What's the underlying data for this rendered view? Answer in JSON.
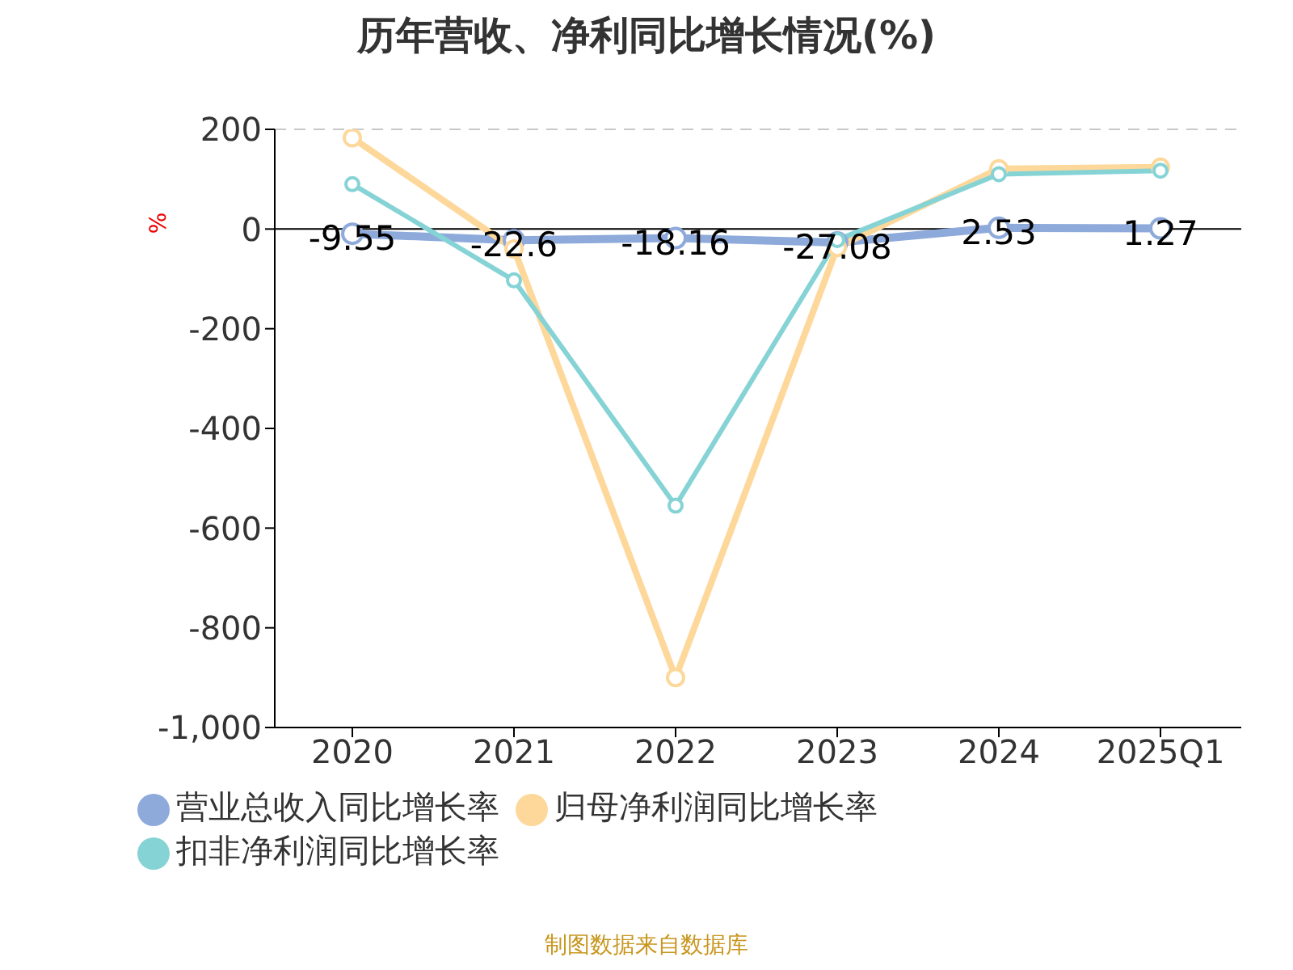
{
  "chart_data": {
    "type": "line",
    "title": "历年营收、净利同比增长情况(%)",
    "ylabel": "%",
    "categories": [
      "2020",
      "2021",
      "2022",
      "2023",
      "2024",
      "2025Q1"
    ],
    "series": [
      {
        "name": "营业总收入同比增长率",
        "color": "#8eaadb",
        "values": [
          -9.55,
          -22.6,
          -18.16,
          -27.08,
          2.53,
          1.27
        ],
        "value_labels": [
          "-9.55",
          "-22.6",
          "-18.16",
          "-27.08",
          "2.53",
          "1.27"
        ]
      },
      {
        "name": "归母净利润同比增长率",
        "color": "#fdd89a",
        "values": [
          183,
          -40,
          -900,
          -37,
          121,
          124
        ]
      },
      {
        "name": "扣非净利润同比增长率",
        "color": "#86d3d6",
        "values": [
          90,
          -103,
          -555,
          -22,
          110,
          117
        ]
      }
    ],
    "ylim": [
      -1000,
      200
    ],
    "yticks": [
      {
        "value": -1000,
        "label": "-1,000"
      },
      -800,
      -600,
      -400,
      -200,
      0,
      200
    ],
    "grid": "y",
    "legend": "bottom",
    "marker": "circle",
    "line_style": "solid",
    "annotations": [
      "制图数据来自数据库"
    ]
  }
}
